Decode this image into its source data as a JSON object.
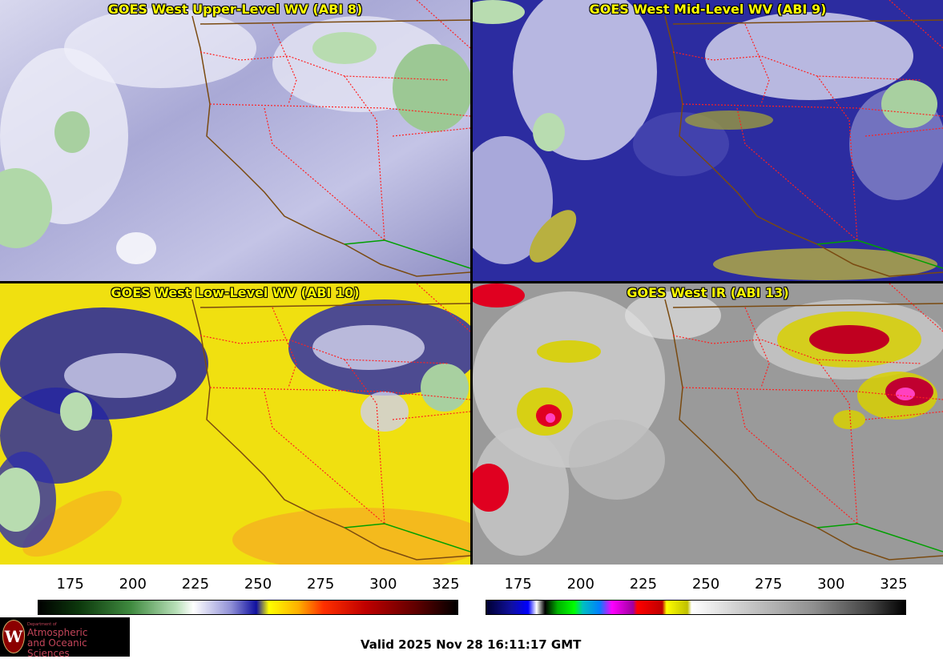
{
  "panels": [
    {
      "title": "GOES West Upper-Level WV (ABI 8)"
    },
    {
      "title": "GOES West Mid-Level WV (ABI 9)"
    },
    {
      "title": "GOES West Low-Level WV (ABI 10)"
    },
    {
      "title": "GOES West IR (ABI 13)"
    }
  ],
  "colorbar_wv": {
    "ticks": [
      "175",
      "200",
      "225",
      "250",
      "275",
      "300",
      "325"
    ],
    "values": [
      175,
      200,
      225,
      250,
      275,
      300,
      325
    ],
    "min": 162,
    "max": 330
  },
  "colorbar_ir": {
    "ticks": [
      "175",
      "200",
      "225",
      "250",
      "275",
      "300",
      "325"
    ],
    "values": [
      175,
      200,
      225,
      250,
      275,
      300,
      325
    ],
    "min": 162,
    "max": 330
  },
  "logo": {
    "dept": "Department of",
    "line1": "Atmospheric",
    "line2": "and Oceanic Sciences",
    "seal_letter": "W"
  },
  "valid_time": "Valid 2025 Nov 28 16:11:17 GMT",
  "colors": {
    "title_text": "#ffff00",
    "border_lines": "#ff2020",
    "coastline": "#7a4a10",
    "mexico_border": "#00a000"
  }
}
